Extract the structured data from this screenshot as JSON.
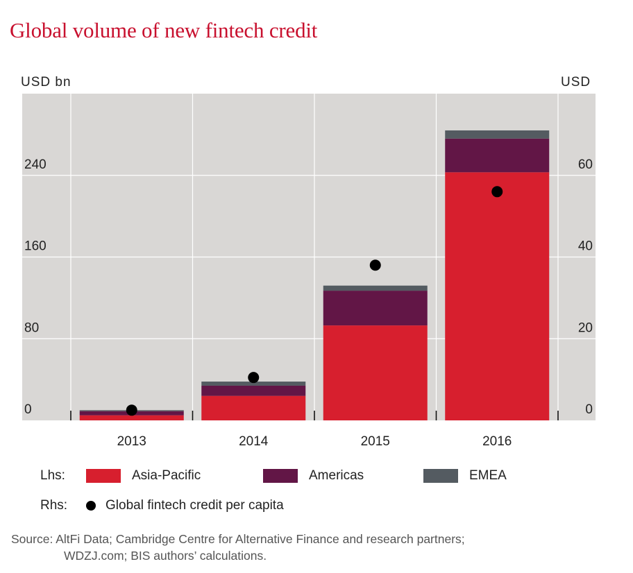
{
  "title": "Global volume of new fintech credit",
  "units": {
    "left": "USD  bn",
    "right": "USD"
  },
  "legend": {
    "lhs_label": "Lhs:",
    "rhs_label": "Rhs:",
    "items": [
      "Asia-Pacific",
      "Americas",
      "EMEA"
    ],
    "rhs_item": "Global fintech credit per capita"
  },
  "source": {
    "line1": "Source: AltFi Data; Cambridge Centre for Alternative Finance and research partners;",
    "line2": "WDZJ.com; BIS authors’ calculations."
  },
  "colors": {
    "background": "#d9d7d5",
    "grid": "#ffffff",
    "asia_pacific": "#d71f2e",
    "americas": "#621646",
    "emea": "#545b61",
    "marker": "#000000",
    "title": "#c8102e"
  },
  "chart_data": {
    "type": "bar",
    "stacked": true,
    "categories": [
      "2013",
      "2014",
      "2015",
      "2016"
    ],
    "series": [
      {
        "name": "Asia-Pacific",
        "axis": "left",
        "values": [
          5,
          24,
          93,
          243
        ]
      },
      {
        "name": "Americas",
        "axis": "left",
        "values": [
          4,
          10,
          34,
          33
        ]
      },
      {
        "name": "EMEA",
        "axis": "left",
        "values": [
          1,
          4,
          5,
          8
        ]
      },
      {
        "name": "Global fintech credit per capita",
        "axis": "right",
        "type": "scatter",
        "values": [
          2.5,
          10.5,
          38,
          56
        ]
      }
    ],
    "y_left": {
      "label": "USD  bn",
      "ylim": [
        0,
        320
      ],
      "ticks": [
        0,
        80,
        160,
        240
      ]
    },
    "y_right": {
      "label": "USD",
      "ylim": [
        0,
        80
      ],
      "ticks": [
        0,
        20,
        40,
        60
      ]
    },
    "grid": true,
    "legend_position": "bottom"
  }
}
